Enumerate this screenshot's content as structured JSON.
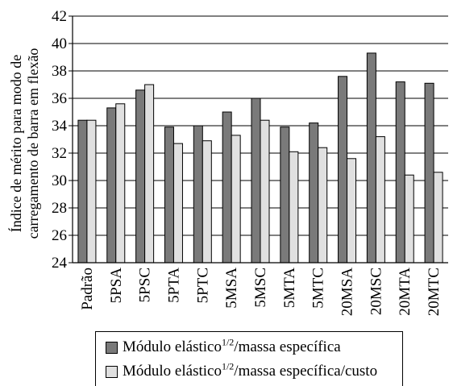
{
  "chart_data": {
    "type": "bar",
    "ylabel_line1": "Índice de mérito para modo de",
    "ylabel_line2": "carregamento de barra em flexão",
    "xlabel": "",
    "ylim": [
      24,
      42
    ],
    "yticks": [
      "24",
      "26",
      "28",
      "30",
      "32",
      "34",
      "36",
      "38",
      "40",
      "42"
    ],
    "categories": [
      "Padrão",
      "5PSA",
      "5PSC",
      "5PTA",
      "5PTC",
      "5MSA",
      "5MSC",
      "5MTA",
      "5MTC",
      "20MSA",
      "20MSC",
      "20MTA",
      "20MTC"
    ],
    "series": [
      {
        "name": "Módulo elástico1/2/massa específica",
        "color": "#7a7a7a",
        "values": [
          34.4,
          35.3,
          36.6,
          33.9,
          34.0,
          35.0,
          36.0,
          33.9,
          34.2,
          37.6,
          39.3,
          37.2,
          37.1
        ]
      },
      {
        "name": "Módulo elástico1/2/massa específica/custo",
        "color": "#e0e0e0",
        "values": [
          34.4,
          35.6,
          37.0,
          32.7,
          32.9,
          33.3,
          34.4,
          32.1,
          32.4,
          31.6,
          33.2,
          30.4,
          30.6
        ]
      }
    ],
    "grid": "horizontal",
    "legend_position": "bottom"
  },
  "legend": {
    "item1_prefix": "Módulo elástico",
    "item1_sup": "1/2",
    "item1_suffix": "/massa específica",
    "item2_prefix": "Módulo elástico",
    "item2_sup": "1/2",
    "item2_suffix": "/massa específica/custo"
  }
}
